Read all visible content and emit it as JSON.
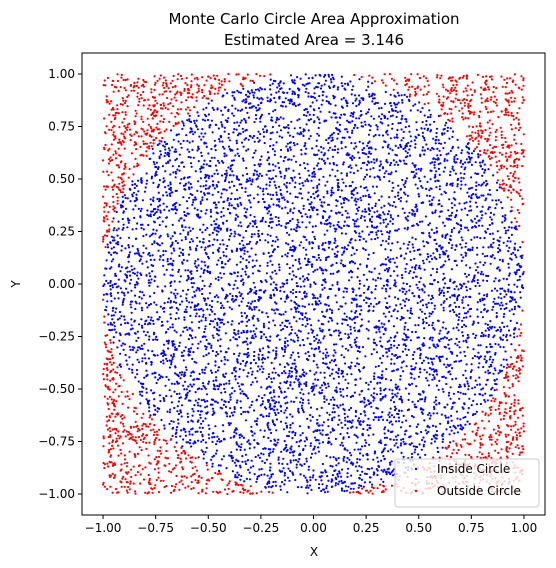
{
  "chart_data": {
    "type": "scatter",
    "title": "Monte Carlo Circle Area Approximation",
    "subtitle": "Estimated Area = 3.146",
    "xlabel": "X",
    "ylabel": "Y",
    "xlim": [
      -1.1,
      1.1
    ],
    "ylim": [
      -1.1,
      1.1
    ],
    "x_ticks": [
      "−1.00",
      "−0.75",
      "−0.50",
      "−0.25",
      "0.00",
      "0.25",
      "0.50",
      "0.75",
      "1.00"
    ],
    "y_ticks": [
      "−1.00",
      "−0.75",
      "−0.50",
      "−0.25",
      "0.00",
      "0.25",
      "0.50",
      "0.75",
      "1.00"
    ],
    "grid": false,
    "legend_position": "bottom-right",
    "series": [
      {
        "name": "Inside Circle",
        "color": "#0000ff",
        "rule": "x^2 + y^2 <= 1"
      },
      {
        "name": "Outside Circle",
        "color": "#ff0000",
        "rule": "x^2 + y^2 > 1"
      }
    ],
    "sample_domain": {
      "x": [
        -1,
        1
      ],
      "y": [
        -1,
        1
      ]
    }
  }
}
